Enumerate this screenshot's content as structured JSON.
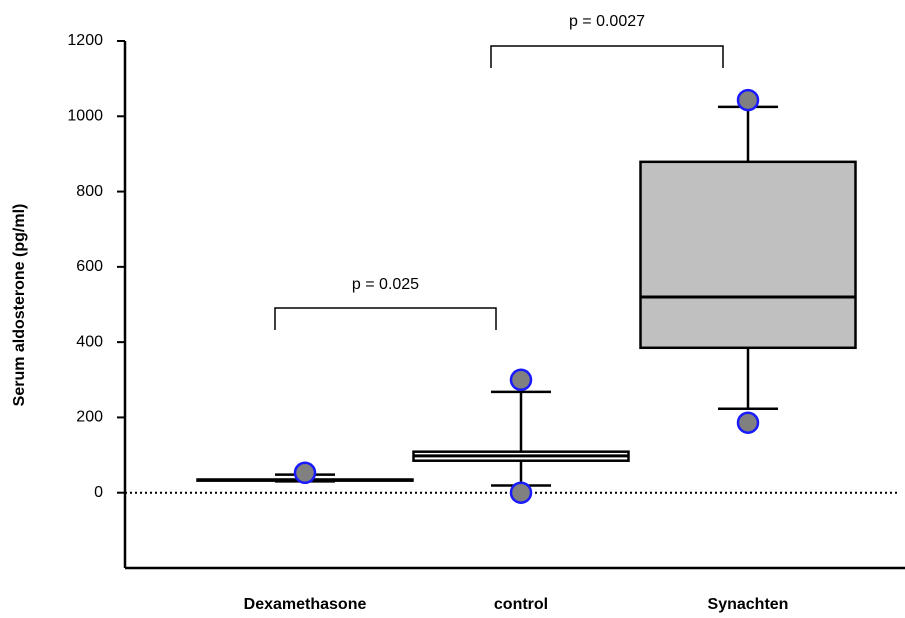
{
  "chart_data": {
    "type": "box",
    "ylabel": "Serum aldosterone (pg/ml)",
    "categories": [
      "Dexamethasone",
      "control",
      "Synachten"
    ],
    "series": [
      {
        "whisker_low": [
          30,
          19,
          223
        ],
        "q1": [
          32,
          85,
          385
        ],
        "median": [
          34,
          98,
          520
        ],
        "q3": [
          35,
          109,
          879
        ],
        "whisker_high": [
          48,
          268,
          1025
        ],
        "outliers": [
          [
            53
          ],
          [
            300,
            0
          ],
          [
            1043,
            186
          ]
        ]
      }
    ],
    "box_colors": [
      "#ffffff",
      "#ffffff",
      "#c0c0c0"
    ],
    "outlier_color": "#808080",
    "outlier_edge": "#1a1aff",
    "annotations": [
      "p = 0.025",
      "p = 0.0027"
    ],
    "ylim": [
      -200,
      1200
    ],
    "yticks": [
      0,
      200,
      400,
      600,
      800,
      1000,
      1200
    ]
  }
}
